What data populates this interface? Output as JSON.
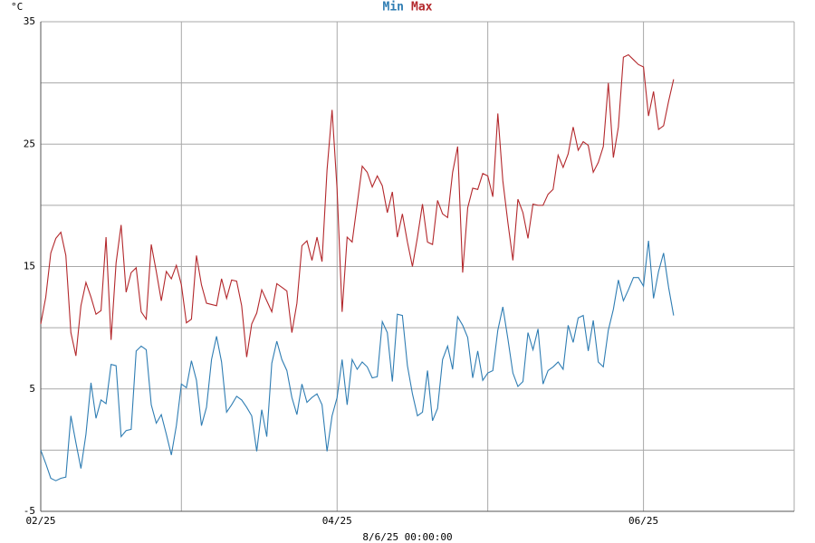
{
  "chart_data": {
    "type": "line",
    "y_label": "°C",
    "footer": "8/6/25 00:00:00",
    "x": [
      0,
      1,
      2,
      3,
      4,
      5,
      6,
      7,
      8,
      9,
      10,
      11,
      12,
      13,
      14,
      15,
      16,
      17,
      18,
      19,
      20,
      21,
      22,
      23,
      24,
      25,
      26,
      27,
      28,
      29,
      30,
      31,
      32,
      33,
      34,
      35,
      36,
      37,
      38,
      39,
      40,
      41,
      42,
      43,
      44,
      45,
      46,
      47,
      48,
      49,
      50,
      51,
      52,
      53,
      54,
      55,
      56,
      57,
      58,
      59,
      60,
      61,
      62,
      63,
      64,
      65,
      66,
      67,
      68,
      69,
      70,
      71,
      72,
      73,
      74,
      75,
      76,
      77,
      78,
      79,
      80,
      81,
      82,
      83,
      84,
      85,
      86,
      87,
      88,
      89,
      90,
      91,
      92,
      93,
      94,
      95,
      96,
      97,
      98,
      99,
      100,
      101,
      102,
      103,
      104,
      105,
      106,
      107,
      108,
      109,
      110,
      111,
      112,
      113,
      114,
      115,
      116,
      117,
      118,
      119,
      120,
      121,
      122,
      123,
      124,
      125,
      126
    ],
    "xlim": [
      0,
      150
    ],
    "xticks": [
      {
        "value": 0,
        "label": "02/25"
      },
      {
        "value": 59,
        "label": "04/25"
      },
      {
        "value": 120,
        "label": "06/25"
      }
    ],
    "xgrid": [
      28,
      89,
      150
    ],
    "ylim": [
      -5,
      35
    ],
    "yticks": [
      -5,
      5,
      15,
      25,
      35
    ],
    "ygrid": [
      0,
      10,
      20,
      30
    ],
    "series": [
      {
        "name": "Min",
        "color": "#2f7db3",
        "values": [
          0.0,
          -1.1,
          -2.3,
          -2.5,
          -2.3,
          -2.2,
          2.8,
          0.6,
          -1.5,
          1.3,
          5.5,
          2.6,
          4.1,
          3.8,
          7.0,
          6.9,
          1.1,
          1.6,
          1.7,
          8.1,
          8.5,
          8.2,
          3.7,
          2.2,
          2.9,
          1.3,
          -0.4,
          2.0,
          5.4,
          5.1,
          7.3,
          5.7,
          2.0,
          3.5,
          7.4,
          9.3,
          7.2,
          3.1,
          3.7,
          4.4,
          4.1,
          3.5,
          2.8,
          -0.1,
          3.3,
          1.1,
          7.1,
          8.9,
          7.4,
          6.5,
          4.3,
          2.9,
          5.4,
          3.9,
          4.3,
          4.6,
          3.7,
          -0.1,
          2.8,
          4.3,
          7.4,
          3.7,
          7.4,
          6.6,
          7.2,
          6.8,
          5.9,
          6.0,
          10.5,
          9.6,
          5.6,
          11.1,
          11.0,
          6.9,
          4.6,
          2.8,
          3.1,
          6.5,
          2.4,
          3.4,
          7.4,
          8.5,
          6.6,
          10.9,
          10.2,
          9.2,
          5.9,
          8.1,
          5.7,
          6.3,
          6.5,
          9.8,
          11.7,
          9.1,
          6.3,
          5.2,
          5.6,
          9.6,
          8.2,
          9.9,
          5.4,
          6.5,
          6.8,
          7.2,
          6.6,
          10.2,
          8.8,
          10.8,
          11.0,
          8.1,
          10.6,
          7.2,
          6.8,
          9.8,
          11.5,
          13.9,
          12.2,
          13.1,
          14.1,
          14.1,
          13.4,
          17.1,
          12.4,
          14.6,
          16.1,
          13.3,
          11.0
        ]
      },
      {
        "name": "Max",
        "color": "#b3282c",
        "values": [
          10.3,
          12.5,
          16.1,
          17.3,
          17.8,
          15.9,
          9.6,
          7.7,
          11.8,
          13.7,
          12.5,
          11.1,
          11.4,
          17.4,
          9.0,
          15.3,
          18.4,
          12.9,
          14.5,
          14.9,
          11.3,
          10.7,
          16.8,
          14.6,
          12.2,
          14.6,
          14.0,
          15.1,
          13.5,
          10.4,
          10.7,
          15.9,
          13.5,
          12.0,
          11.9,
          11.8,
          14.0,
          12.4,
          13.9,
          13.8,
          11.8,
          7.6,
          10.3,
          11.2,
          13.1,
          12.2,
          11.3,
          13.6,
          13.3,
          13.0,
          9.6,
          12.0,
          16.7,
          17.1,
          15.5,
          17.4,
          15.4,
          22.9,
          27.8,
          21.3,
          11.3,
          17.4,
          17.0,
          20.1,
          23.2,
          22.7,
          21.5,
          22.4,
          21.6,
          19.4,
          21.1,
          17.4,
          19.3,
          17.0,
          15.0,
          17.4,
          20.1,
          17.0,
          16.8,
          20.4,
          19.3,
          19.0,
          22.7,
          24.8,
          14.5,
          19.8,
          21.4,
          21.3,
          22.6,
          22.4,
          20.7,
          27.5,
          22.0,
          18.6,
          15.5,
          20.5,
          19.4,
          17.3,
          20.1,
          20.0,
          20.0,
          20.9,
          21.3,
          24.1,
          23.1,
          24.2,
          26.4,
          24.5,
          25.2,
          24.9,
          22.7,
          23.5,
          24.8,
          30.0,
          23.9,
          26.4,
          32.1,
          32.3,
          31.9,
          31.5,
          31.3,
          27.3,
          29.3,
          26.2,
          26.5,
          28.5,
          30.3
        ]
      }
    ]
  }
}
